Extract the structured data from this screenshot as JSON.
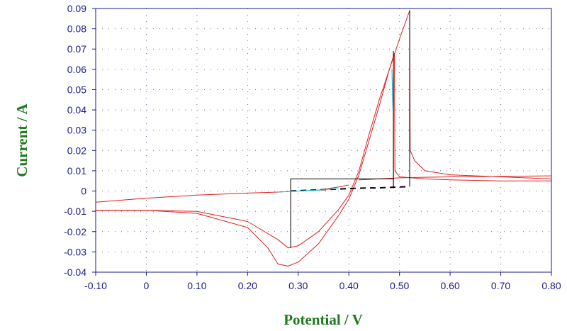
{
  "chart_data": {
    "type": "line",
    "title": "",
    "xlabel": "Potential / V",
    "ylabel": "Current / A",
    "xlim": [
      -0.1,
      0.8
    ],
    "ylim": [
      -0.04,
      0.09
    ],
    "x_ticks": [
      "-0.10",
      "0",
      "0.10",
      "0.20",
      "0.30",
      "0.40",
      "0.50",
      "0.60",
      "0.70",
      "0.80"
    ],
    "y_ticks": [
      "-0.04",
      "-0.03",
      "-0.02",
      "-0.01",
      "0",
      "0.01",
      "0.02",
      "0.03",
      "0.04",
      "0.05",
      "0.06",
      "0.07",
      "0.08",
      "0.09"
    ],
    "grid": true,
    "legend": "none",
    "colors": {
      "curve": "#e02020",
      "fit": "#000000",
      "baseline": "#00c8d8",
      "axis_text": "#1a1a8c",
      "axis_title": "#1e7a1e"
    },
    "series": [
      {
        "color": "#e02020",
        "x": [
          -0.1,
          0.0,
          0.1,
          0.2,
          0.24,
          0.26,
          0.28,
          0.3,
          0.34,
          0.38,
          0.4,
          0.42,
          0.44,
          0.46,
          0.48,
          0.49,
          0.491,
          0.5,
          0.55,
          0.6,
          0.7,
          0.8
        ],
        "y": [
          -0.0095,
          -0.0095,
          -0.011,
          -0.018,
          -0.028,
          -0.036,
          -0.037,
          -0.035,
          -0.026,
          -0.012,
          -0.004,
          0.008,
          0.025,
          0.042,
          0.06,
          0.068,
          0.01,
          0.007,
          0.006,
          0.0055,
          0.005,
          0.005
        ]
      },
      {
        "color": "#e02020",
        "x": [
          -0.1,
          0.0,
          0.1,
          0.2,
          0.26,
          0.28,
          0.3,
          0.34,
          0.38,
          0.4,
          0.42,
          0.44,
          0.46,
          0.48,
          0.5,
          0.52,
          0.521,
          0.53,
          0.55,
          0.6,
          0.7,
          0.8
        ],
        "y": [
          -0.0095,
          -0.0095,
          -0.01,
          -0.015,
          -0.024,
          -0.028,
          -0.027,
          -0.02,
          -0.009,
          -0.002,
          0.01,
          0.028,
          0.045,
          0.06,
          0.075,
          0.089,
          0.02,
          0.015,
          0.01,
          0.008,
          0.007,
          0.006
        ]
      },
      {
        "color": "#e02020",
        "x": [
          -0.1,
          0.0,
          0.1,
          0.2,
          0.26,
          0.3,
          0.34,
          0.38,
          0.4
        ],
        "y": [
          -0.0055,
          -0.0035,
          -0.002,
          -0.001,
          -0.0005,
          0.0,
          0.0005,
          0.002,
          0.003
        ]
      },
      {
        "color": "#e02020",
        "x": [
          0.42,
          0.46,
          0.5,
          0.55,
          0.6,
          0.7,
          0.8
        ],
        "y": [
          0.0055,
          0.006,
          0.0065,
          0.0068,
          0.007,
          0.0072,
          0.0075
        ]
      },
      {
        "color": "#8b0000",
        "x": [
          0.488,
          0.488
        ],
        "y": [
          0.0015,
          0.056
        ]
      },
      {
        "color": "#000000",
        "x": [
          0.285,
          0.285,
          0.488,
          0.488,
          0.488
        ],
        "y": [
          -0.028,
          0.006,
          0.006,
          0.0015,
          0.069
        ]
      },
      {
        "color": "#000000",
        "x": [
          0.285,
          0.3,
          0.32,
          0.34,
          0.36,
          0.38,
          0.4,
          0.42,
          0.44,
          0.46,
          0.48,
          0.5,
          0.52
        ],
        "y": [
          0.0,
          0.0002,
          0.0004,
          0.0006,
          0.0008,
          0.001,
          0.0012,
          0.0014,
          0.0015,
          0.0016,
          0.0018,
          0.002,
          0.0022
        ],
        "dashed": true
      },
      {
        "color": "#000000",
        "x": [
          0.52,
          0.52,
          0.52
        ],
        "y": [
          0.0022,
          0.089,
          0.0022
        ]
      },
      {
        "color": "#00c8d8",
        "x": [
          0.26,
          0.3,
          0.34,
          0.38
        ],
        "y": [
          -0.0005,
          0.0,
          0.0005,
          0.0012
        ]
      },
      {
        "color": "#00c8d8",
        "x": [
          0.485,
          0.487
        ],
        "y": [
          0.06,
          0.04
        ]
      }
    ]
  }
}
